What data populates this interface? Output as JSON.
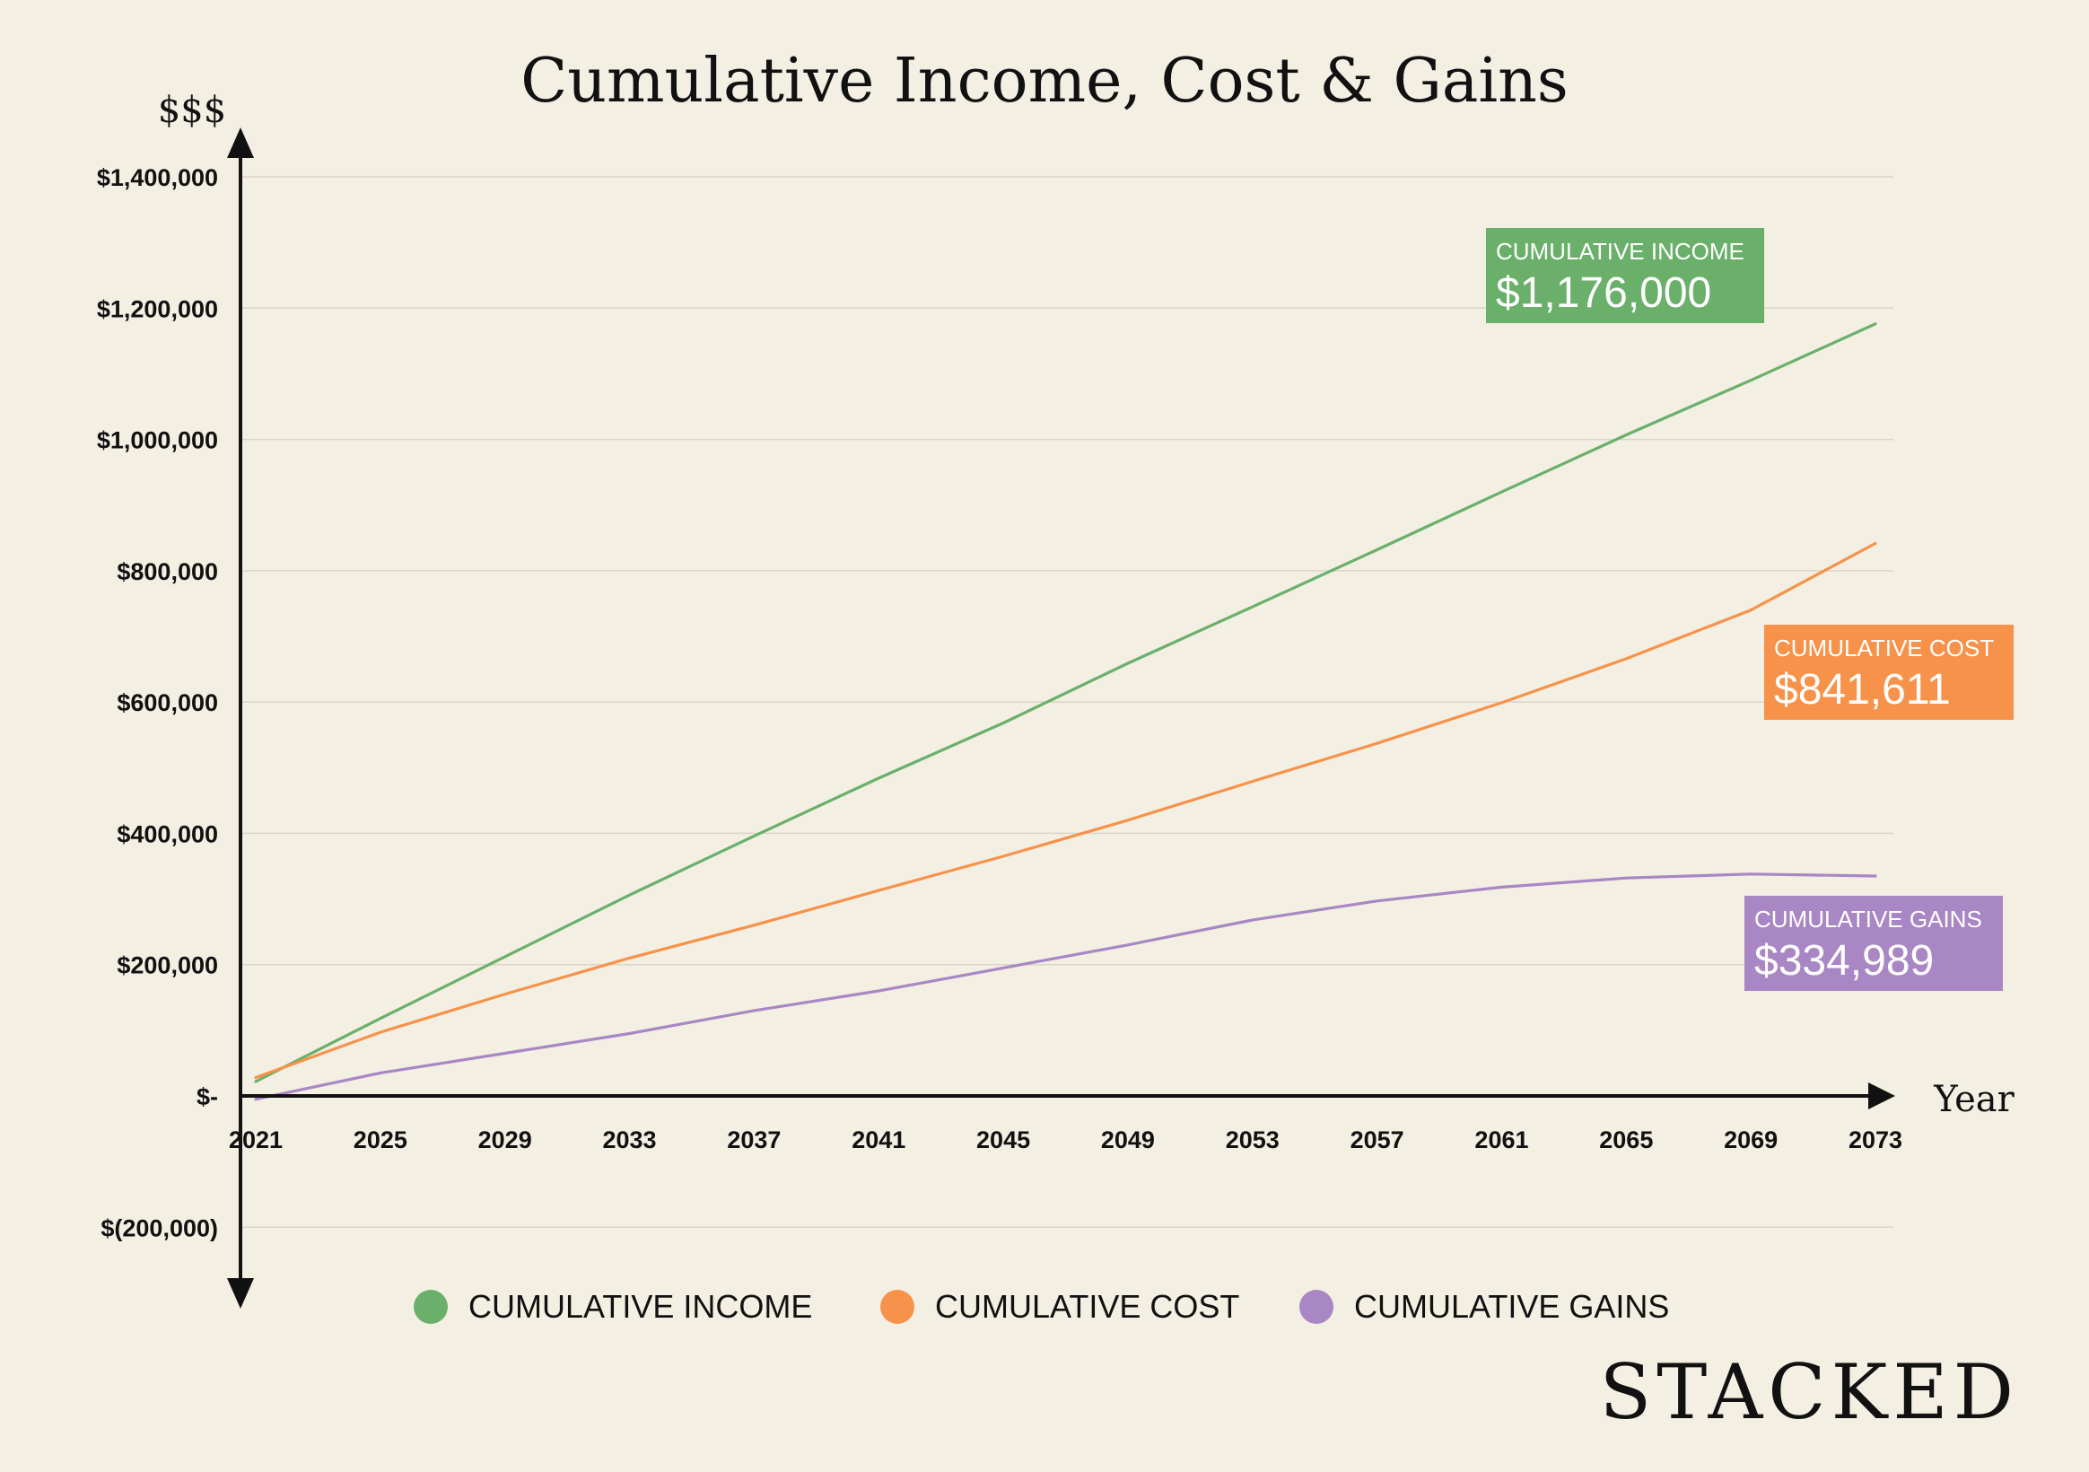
{
  "chart_data": {
    "type": "line",
    "title": "Cumulative Income, Cost & Gains",
    "ylabel": "$$$",
    "xlabel": "Year",
    "ylim": [
      -300000,
      1400000
    ],
    "xlim": [
      2021,
      2073
    ],
    "y_ticks": [
      {
        "value": 1400000,
        "label": "$1,400,000"
      },
      {
        "value": 1200000,
        "label": "$1,200,000"
      },
      {
        "value": 1000000,
        "label": "$1,000,000"
      },
      {
        "value": 800000,
        "label": "$800,000"
      },
      {
        "value": 600000,
        "label": "$600,000"
      },
      {
        "value": 400000,
        "label": "$400,000"
      },
      {
        "value": 200000,
        "label": "$200,000"
      },
      {
        "value": 0,
        "label": "$-"
      },
      {
        "value": -200000,
        "label": "$(200,000)"
      }
    ],
    "x_ticks": [
      "2021",
      "2025",
      "2029",
      "2033",
      "2037",
      "2041",
      "2045",
      "2049",
      "2053",
      "2057",
      "2061",
      "2065",
      "2069",
      "2073"
    ],
    "x": [
      2021,
      2025,
      2029,
      2033,
      2037,
      2041,
      2045,
      2049,
      2053,
      2057,
      2061,
      2065,
      2069,
      2073
    ],
    "series": [
      {
        "name": "CUMULATIVE INCOME",
        "color": "#6ab06a",
        "values": [
          22000,
          118000,
          212000,
          306000,
          396000,
          484000,
          568000,
          659000,
          745000,
          832000,
          920000,
          1007000,
          1090000,
          1176000
        ]
      },
      {
        "name": "CUMULATIVE COST",
        "color": "#f7924b",
        "values": [
          28000,
          97000,
          155000,
          210000,
          260000,
          313000,
          365000,
          420000,
          479000,
          537000,
          599000,
          666000,
          740000,
          841611
        ]
      },
      {
        "name": "CUMULATIVE GAINS",
        "color": "#a986c4",
        "values": [
          -5000,
          35000,
          65000,
          95000,
          130000,
          160000,
          195000,
          230000,
          268000,
          297000,
          318000,
          332000,
          338000,
          334989
        ]
      }
    ],
    "callouts": [
      {
        "series": "CUMULATIVE INCOME",
        "title": "CUMULATIVE INCOME",
        "value": "$1,176,000",
        "color": "#6ab06a"
      },
      {
        "series": "CUMULATIVE COST",
        "title": "CUMULATIVE COST",
        "value": "$841,611",
        "color": "#f7924b"
      },
      {
        "series": "CUMULATIVE GAINS",
        "title": "CUMULATIVE GAINS",
        "value": "$334,989",
        "color": "#a986c4"
      }
    ],
    "legend": {
      "placement": "bottom",
      "items": [
        {
          "label": "CUMULATIVE INCOME",
          "color": "#6ab06a"
        },
        {
          "label": "CUMULATIVE COST",
          "color": "#f7924b"
        },
        {
          "label": "CUMULATIVE GAINS",
          "color": "#a986c4"
        }
      ]
    },
    "grid": true
  },
  "brand": "STACKED"
}
